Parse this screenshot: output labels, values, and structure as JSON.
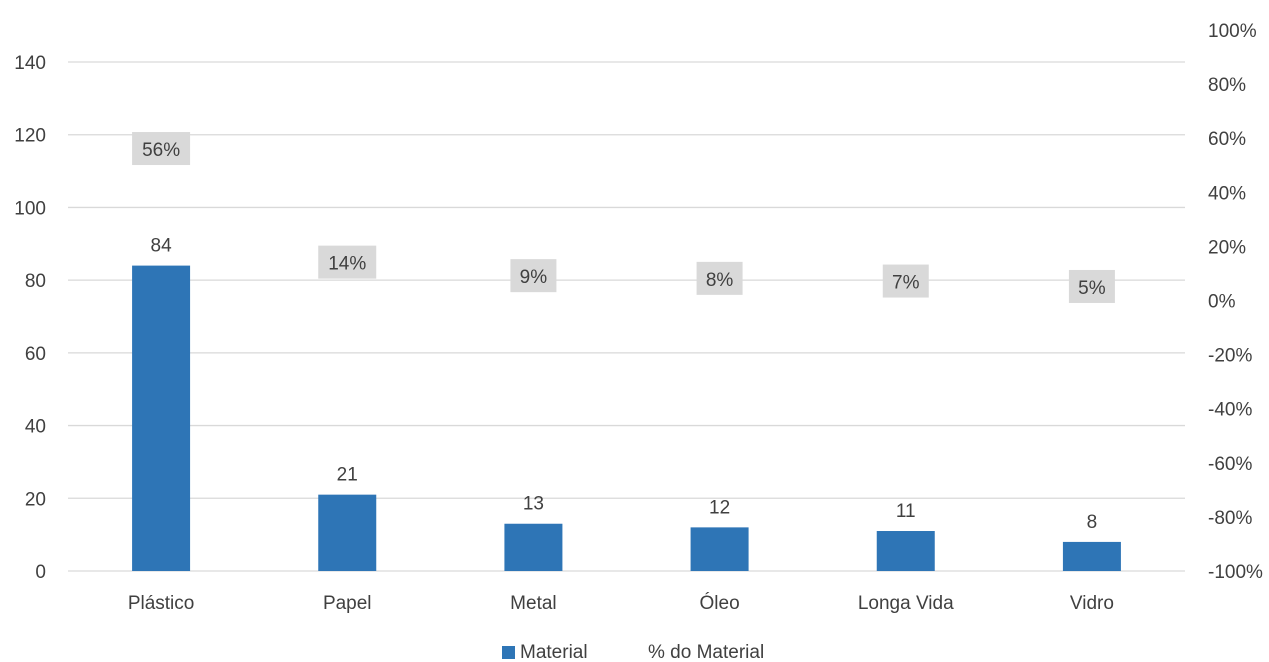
{
  "chart_data": {
    "type": "bar",
    "title": "",
    "categories": [
      "Plástico",
      "Papel",
      "Metal",
      "Óleo",
      "Longa Vida",
      "Vidro"
    ],
    "series": [
      {
        "name": "Material",
        "axis": "primary",
        "type": "bar",
        "values": [
          84,
          21,
          13,
          12,
          11,
          8
        ]
      },
      {
        "name": "% do Material",
        "axis": "secondary",
        "type": "line",
        "values": [
          0.56,
          0.14,
          0.09,
          0.08,
          0.07,
          0.05
        ]
      }
    ],
    "percent_labels": [
      "56%",
      "14%",
      "9%",
      "8%",
      "7%",
      "5%"
    ],
    "value_labels": [
      "84",
      "21",
      "13",
      "12",
      "11",
      "8"
    ],
    "ylim": [
      0,
      140
    ],
    "y_ticks": [
      "0",
      "20",
      "40",
      "60",
      "80",
      "100",
      "120",
      "140"
    ],
    "y2lim": [
      -1,
      1
    ],
    "y2_ticks": [
      "-100%",
      "-80%",
      "-60%",
      "-40%",
      "-20%",
      "0%",
      "20%",
      "40%",
      "60%",
      "80%",
      "100%"
    ],
    "legend": {
      "position": "bottom",
      "items": [
        "Material",
        "% do Material"
      ]
    },
    "grid": true,
    "colors": {
      "bar": "#2e75b6",
      "grid": "#d9d9d9",
      "label_bg": "#d9d9d9",
      "text": "#404040"
    }
  }
}
